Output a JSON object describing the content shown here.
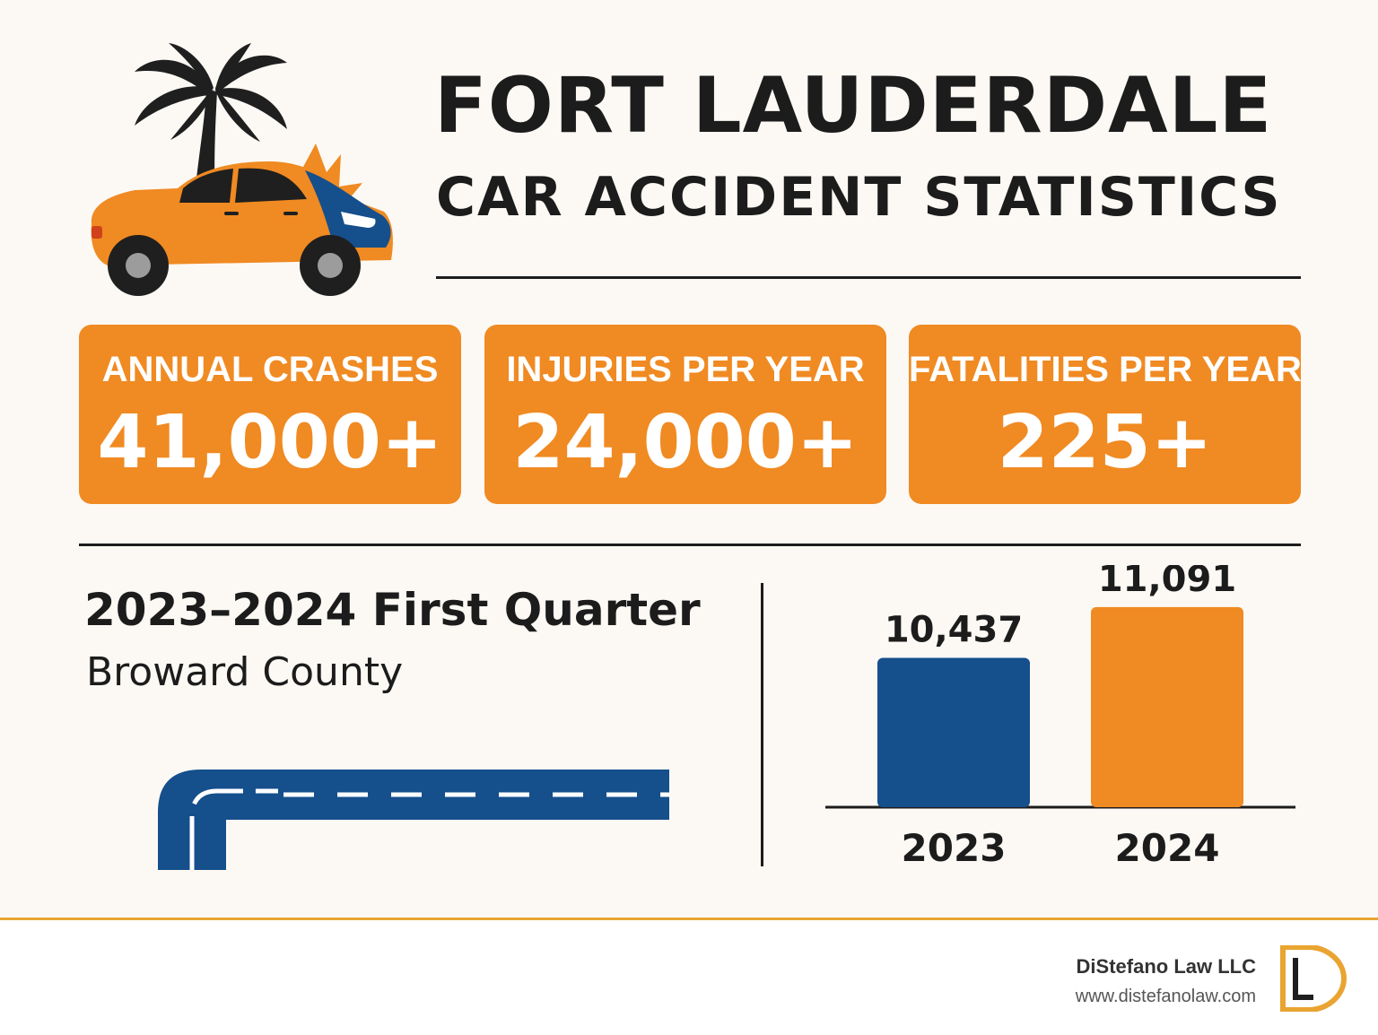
{
  "title": {
    "line1": "FORT LAUDERDALE",
    "line2": "CAR ACCIDENT STATISTICS"
  },
  "stats": [
    {
      "label": "ANNUAL CRASHES",
      "value": "41,000+"
    },
    {
      "label": "INJURIES PER YEAR",
      "value": "24,000+"
    },
    {
      "label": "FATALITIES PER YEAR",
      "value": "225+"
    }
  ],
  "quarter": {
    "title": "2023–2024 First Quarter",
    "subtitle": "Broward County"
  },
  "chart_data": {
    "type": "bar",
    "categories": [
      "2023",
      "2024"
    ],
    "values": [
      10437,
      11091
    ],
    "value_labels": [
      "10,437",
      "11,091"
    ],
    "colors": [
      "#154f8c",
      "#f08a22"
    ],
    "title": "",
    "xlabel": "",
    "ylabel": "",
    "ylim": [
      0,
      11500
    ]
  },
  "footer": {
    "firm_name": "DiStefano Law LLC",
    "website": "www.distefanolaw.com",
    "logo_text": "DiStefano Law LLC logo"
  },
  "colors": {
    "accent_orange": "#f08a22",
    "navy": "#154f8c",
    "background": "#fcf9f4",
    "gold": "#e9a431"
  },
  "icons": [
    "palm-tree-icon",
    "car-icon",
    "crash-burst-icon",
    "road-icon",
    "law-firm-logo-icon"
  ]
}
